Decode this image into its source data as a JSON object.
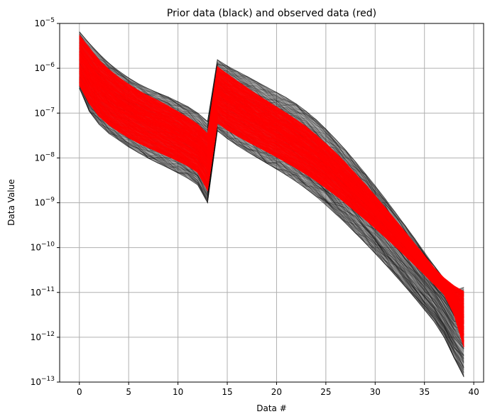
{
  "chart_data": {
    "type": "line",
    "title": "Prior data (black) and observed data (red)",
    "xlabel": "Data #",
    "ylabel": "Data Value",
    "xlim": [
      -2,
      41
    ],
    "ylim": [
      1e-13,
      1e-05
    ],
    "yscale": "log",
    "grid": true,
    "x_ticks": [
      0,
      5,
      10,
      15,
      20,
      25,
      30,
      35,
      40
    ],
    "x_tick_labels": [
      "0",
      "5",
      "10",
      "15",
      "20",
      "25",
      "30",
      "35",
      "40"
    ],
    "y_ticks": [
      -13,
      -12,
      -11,
      -10,
      -9,
      -8,
      -7,
      -6,
      -5
    ],
    "y_tick_labels": [
      {
        "base": "10",
        "exp": "−13"
      },
      {
        "base": "10",
        "exp": "−12"
      },
      {
        "base": "10",
        "exp": "−11"
      },
      {
        "base": "10",
        "exp": "−10"
      },
      {
        "base": "10",
        "exp": "−9"
      },
      {
        "base": "10",
        "exp": "−8"
      },
      {
        "base": "10",
        "exp": "−7"
      },
      {
        "base": "10",
        "exp": "−6"
      },
      {
        "base": "10",
        "exp": "−5"
      }
    ],
    "colors": {
      "prior": "#000000",
      "observed": "#ff0000",
      "grid": "#b0b0b0"
    },
    "series": [
      {
        "role": "prior",
        "x": [
          0,
          1,
          2,
          3,
          4,
          5,
          6,
          7,
          8,
          9,
          10,
          11,
          12,
          13,
          14,
          15,
          16,
          17,
          18,
          19,
          20,
          21,
          22,
          23,
          24,
          25,
          26,
          27,
          28,
          29,
          30,
          31,
          32,
          33,
          34,
          35,
          36,
          37,
          38,
          39
        ],
        "upper": [
          6.5e-06,
          3.6e-06,
          2.1e-06,
          1.3e-06,
          8.7e-07,
          6.1e-07,
          4.5e-07,
          3.5e-07,
          2.8e-07,
          2.3e-07,
          1.8e-07,
          1.4e-07,
          1e-07,
          6.5e-08,
          1.55e-06,
          1.13e-06,
          8.6e-07,
          6.6e-07,
          5e-07,
          3.8e-07,
          2.9e-07,
          2.2e-07,
          1.6e-07,
          1.1e-07,
          7.2e-08,
          4.4e-08,
          2.6e-08,
          1.5e-08,
          8.3e-09,
          4.5e-09,
          2.4e-09,
          1.25e-09,
          6.3e-10,
          3.2e-10,
          1.6e-10,
          7.9e-11,
          3.9e-11,
          2e-11,
          1.1e-11,
          1.3e-11
        ],
        "lower": [
          3.6e-07,
          1.1e-07,
          5.6e-08,
          3.5e-08,
          2.5e-08,
          1.75e-08,
          1.3e-08,
          9.8e-09,
          7.6e-09,
          6e-09,
          4.6e-09,
          3.5e-09,
          2.5e-09,
          1e-09,
          4e-08,
          2.7e-08,
          1.9e-08,
          1.38e-08,
          1.02e-08,
          7.6e-09,
          5.6e-09,
          4.1e-09,
          2.95e-09,
          2.05e-09,
          1.38e-09,
          8.9e-10,
          5.6e-10,
          3.5e-10,
          2.1e-10,
          1.26e-10,
          7.4e-11,
          4.3e-11,
          2.45e-11,
          1.38e-11,
          7.6e-12,
          4.1e-12,
          2.2e-12,
          1e-12,
          3.5e-13,
          1.3e-13
        ]
      },
      {
        "role": "observed",
        "x": [
          0,
          1,
          2,
          3,
          4,
          5,
          6,
          7,
          8,
          9,
          10,
          11,
          12,
          13,
          14,
          15,
          16,
          17,
          18,
          19,
          20,
          21,
          22,
          23,
          24,
          25,
          26,
          27,
          28,
          29,
          30,
          31,
          32,
          33,
          34,
          35,
          36,
          37,
          38,
          39
        ],
        "upper": [
          5.6e-06,
          2.9e-06,
          1.55e-06,
          9.5e-07,
          6.3e-07,
          4.4e-07,
          3.2e-07,
          2.45e-07,
          1.9e-07,
          1.45e-07,
          1.08e-07,
          8e-08,
          5.7e-08,
          3.5e-08,
          1.1e-06,
          7.5e-07,
          5.2e-07,
          3.7e-07,
          2.65e-07,
          1.9e-07,
          1.38e-07,
          1e-07,
          7.1e-08,
          5e-08,
          3.3e-08,
          2.1e-08,
          1.3e-08,
          7.8e-09,
          4.5e-09,
          2.6e-09,
          1.45e-09,
          7.9e-10,
          4.3e-10,
          2.3e-10,
          1.23e-10,
          6.6e-11,
          3.5e-11,
          2.1e-11,
          1.4e-11,
          1.05e-11
        ],
        "lower": [
          4.2e-07,
          1.65e-07,
          8.4e-08,
          5.4e-08,
          3.8e-08,
          2.8e-08,
          2.15e-08,
          1.7e-08,
          1.35e-08,
          1.08e-08,
          8.5e-09,
          6.6e-09,
          4.7e-09,
          1.9e-09,
          6e-08,
          4.2e-08,
          3.1e-08,
          2.35e-08,
          1.8e-08,
          1.38e-08,
          1.05e-08,
          7.9e-09,
          5.9e-09,
          4.3e-09,
          3.05e-09,
          2.12e-09,
          1.45e-09,
          9.7e-10,
          6.4e-10,
          4.2e-10,
          2.7e-10,
          1.72e-10,
          1.08e-10,
          6.7e-11,
          4.1e-11,
          2.5e-11,
          1.5e-11,
          9e-12,
          3.2e-12,
          6e-13
        ]
      }
    ]
  }
}
